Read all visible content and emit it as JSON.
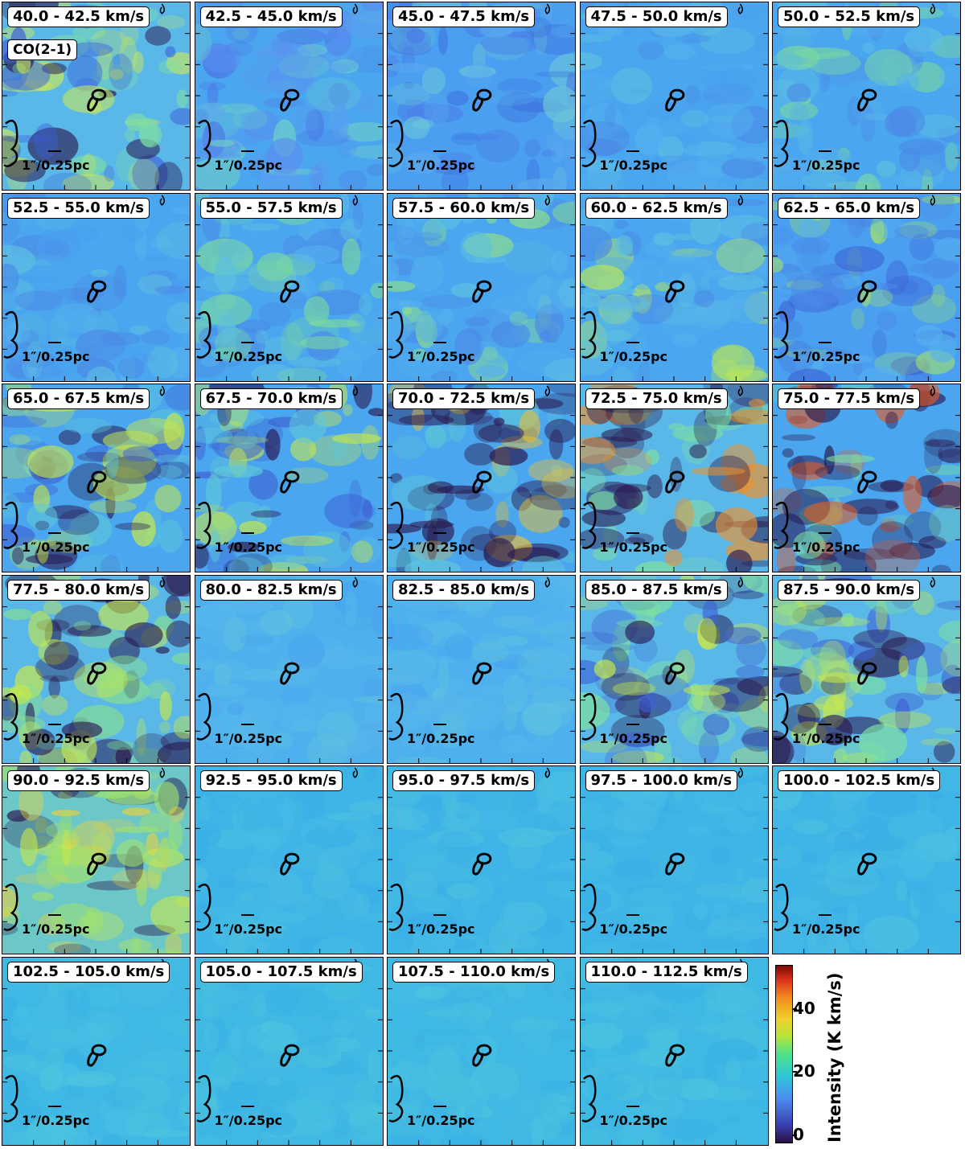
{
  "molecule_label": "CO(2-1)",
  "scale_label": "1″/0.25pc",
  "colorbar": {
    "title": "Intensity (K km/s)",
    "ticks": [
      "0",
      "20",
      "40"
    ]
  },
  "chart_data": {
    "type": "heatmap",
    "title": "",
    "description_channels": "Channel maps of CO(2-1) integrated intensity in 2.5 km/s velocity bins",
    "channels": [
      "40.0 - 42.5 km/s",
      "42.5 - 45.0 km/s",
      "45.0 - 47.5 km/s",
      "47.5 - 50.0 km/s",
      "50.0 - 52.5 km/s",
      "52.5 - 55.0 km/s",
      "55.0 - 57.5 km/s",
      "57.5 - 60.0 km/s",
      "60.0 - 62.5 km/s",
      "62.5 - 65.0 km/s",
      "65.0 - 67.5 km/s",
      "67.5 - 70.0 km/s",
      "70.0 - 72.5 km/s",
      "72.5 - 75.0 km/s",
      "75.0 - 77.5 km/s",
      "77.5 - 80.0 km/s",
      "80.0 - 82.5 km/s",
      "82.5 - 85.0 km/s",
      "85.0 - 87.5 km/s",
      "87.5 - 90.0 km/s",
      "90.0 - 92.5 km/s",
      "92.5 - 95.0 km/s",
      "95.0 - 97.5 km/s",
      "97.5 - 100.0 km/s",
      "100.0 - 102.5 km/s",
      "102.5 - 105.0 km/s",
      "105.0 - 107.5 km/s",
      "107.5 - 110.0 km/s",
      "110.0 - 112.5 km/s"
    ],
    "colorbar_range": [
      0,
      50
    ],
    "colorbar_label": "Intensity (K km/s)"
  }
}
